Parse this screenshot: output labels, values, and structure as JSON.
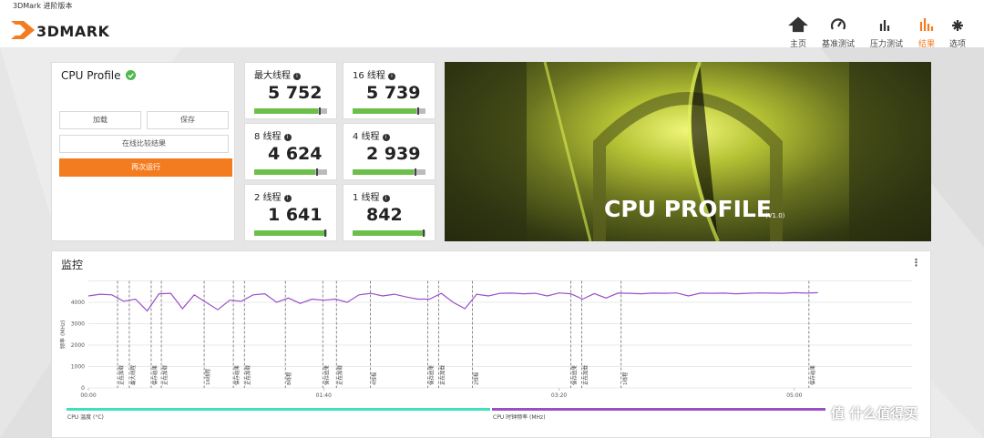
{
  "window": {
    "title": "3DMark 进阶版本"
  },
  "header": {
    "logo": "3DMARK",
    "nav": [
      "主页",
      "基准测试",
      "压力测试",
      "结果",
      "选项"
    ],
    "active": 3
  },
  "test": {
    "name": "CPU Profile",
    "buttons": {
      "load": "加载",
      "save": "保存",
      "compare": "在线比较结果",
      "run": "再次运行"
    }
  },
  "scores": [
    {
      "label": "最大线程",
      "score": "5 752"
    },
    {
      "label": "16 线程",
      "score": "5 739"
    },
    {
      "label": "8 线程",
      "score": "4 624"
    },
    {
      "label": "4 线程",
      "score": "2 939"
    },
    {
      "label": "2 线程",
      "score": "1 641"
    },
    {
      "label": "1 线程",
      "score": "842"
    }
  ],
  "banner": {
    "title": "CPU PROFILE",
    "version": "(V1.0)"
  },
  "monitor": {
    "title": "监控"
  },
  "watermark": "值 什么值得买",
  "chart_data": {
    "type": "line",
    "y_label": "频率 (MHz)",
    "x": [
      0,
      5,
      10,
      15,
      20,
      25,
      30,
      35,
      40,
      45,
      50,
      55,
      60,
      65,
      70,
      75,
      80,
      85,
      90,
      95,
      100,
      105,
      110,
      115,
      120,
      125,
      130,
      135,
      140,
      145,
      150,
      155,
      160,
      165,
      170,
      175,
      180,
      185,
      190,
      195,
      200,
      205,
      210,
      215,
      220,
      225,
      230,
      235,
      240,
      245,
      250,
      255,
      260,
      265,
      270,
      275,
      280,
      285,
      290,
      295,
      300,
      305,
      310
    ],
    "series": [
      {
        "color": "#9b4fc7",
        "values": [
          4300,
          4380,
          4350,
          4050,
          4150,
          3600,
          4400,
          4420,
          3700,
          4350,
          4000,
          3650,
          4100,
          4050,
          4350,
          4400,
          4000,
          4200,
          3950,
          4150,
          4100,
          4150,
          4000,
          4350,
          4420,
          4300,
          4380,
          4250,
          4150,
          4150,
          4420,
          4000,
          3700,
          4380,
          4300,
          4420,
          4430,
          4400,
          4420,
          4300,
          4440,
          4400,
          4150,
          4410,
          4200,
          4430,
          4420,
          4400,
          4430,
          4420,
          4440,
          4300,
          4430,
          4420,
          4430,
          4400,
          4420,
          4440,
          4430,
          4420,
          4450,
          4430,
          4450
        ]
      }
    ],
    "legend": [
      {
        "name": "CPU 温度 (°C)",
        "color": "#3fe0bb"
      },
      {
        "name": "CPU 时钟频率 (MHz)",
        "color": "#9b4fc7"
      }
    ],
    "markers": [
      {
        "x": 12.4,
        "label": "正在加载"
      },
      {
        "x": 17.4,
        "label": "最大线程"
      },
      {
        "x": 26.7,
        "label": "保存结果"
      },
      {
        "x": 31,
        "label": "正在加载"
      },
      {
        "x": 49.2,
        "label": "16线程"
      },
      {
        "x": 61.6,
        "label": "保存结果"
      },
      {
        "x": 66.3,
        "label": "正在加载"
      },
      {
        "x": 83.7,
        "label": "8线程"
      },
      {
        "x": 99.6,
        "label": "保存结果"
      },
      {
        "x": 105.4,
        "label": "正在加载"
      },
      {
        "x": 119.8,
        "label": "4线程"
      },
      {
        "x": 144.2,
        "label": "保存结果"
      },
      {
        "x": 148.8,
        "label": "正在加载"
      },
      {
        "x": 163.2,
        "label": "2线程"
      },
      {
        "x": 205,
        "label": "保存结果"
      },
      {
        "x": 209.7,
        "label": "正在加载"
      },
      {
        "x": 226.4,
        "label": "1线程"
      },
      {
        "x": 306.2,
        "label": "保存结果"
      }
    ],
    "xlim": [
      0,
      350
    ],
    "ylim": [
      0,
      5000
    ],
    "xticks": [
      {
        "value": 0,
        "label": "00:00"
      },
      {
        "value": 100,
        "label": "01:40"
      },
      {
        "value": 200,
        "label": "03:20"
      },
      {
        "value": 300,
        "label": "05:00"
      }
    ],
    "yticks": [
      0,
      1000,
      2000,
      3000,
      4000
    ],
    "grid": true
  }
}
